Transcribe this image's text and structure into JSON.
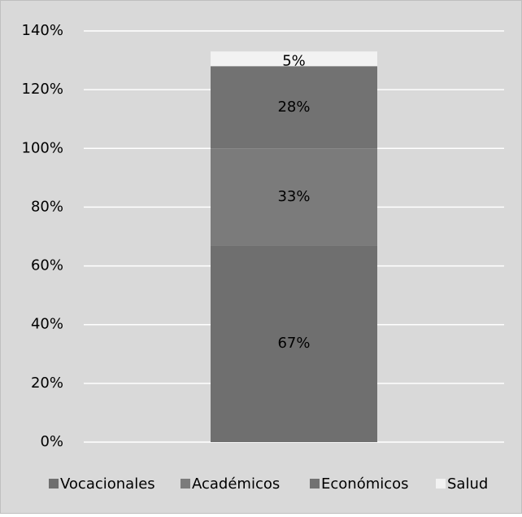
{
  "chart_data": {
    "type": "stacked_bar",
    "categories": [
      null
    ],
    "series": [
      {
        "name": "Vocacionales",
        "color": "#6f6f6f",
        "values": [
          67
        ],
        "value_labels": [
          "67%"
        ]
      },
      {
        "name": "Académicos",
        "color": "#7b7b7b",
        "values": [
          33
        ],
        "value_labels": [
          "33%"
        ]
      },
      {
        "name": "Económicos",
        "color": "#727272",
        "values": [
          28
        ],
        "value_labels": [
          "28%"
        ]
      },
      {
        "name": "Salud",
        "color": "#f2f2f2",
        "values": [
          5
        ],
        "value_labels": [
          "5%"
        ]
      }
    ],
    "ylim": [
      0,
      140
    ],
    "yticks": [
      {
        "value": 0,
        "label": "0%"
      },
      {
        "value": 20,
        "label": "20%"
      },
      {
        "value": 40,
        "label": "40%"
      },
      {
        "value": 60,
        "label": "60%"
      },
      {
        "value": 80,
        "label": "80%"
      },
      {
        "value": 100,
        "label": "100%"
      },
      {
        "value": 120,
        "label": "120%"
      },
      {
        "value": 140,
        "label": "140%"
      }
    ],
    "grid": true,
    "legend": "bottom"
  }
}
